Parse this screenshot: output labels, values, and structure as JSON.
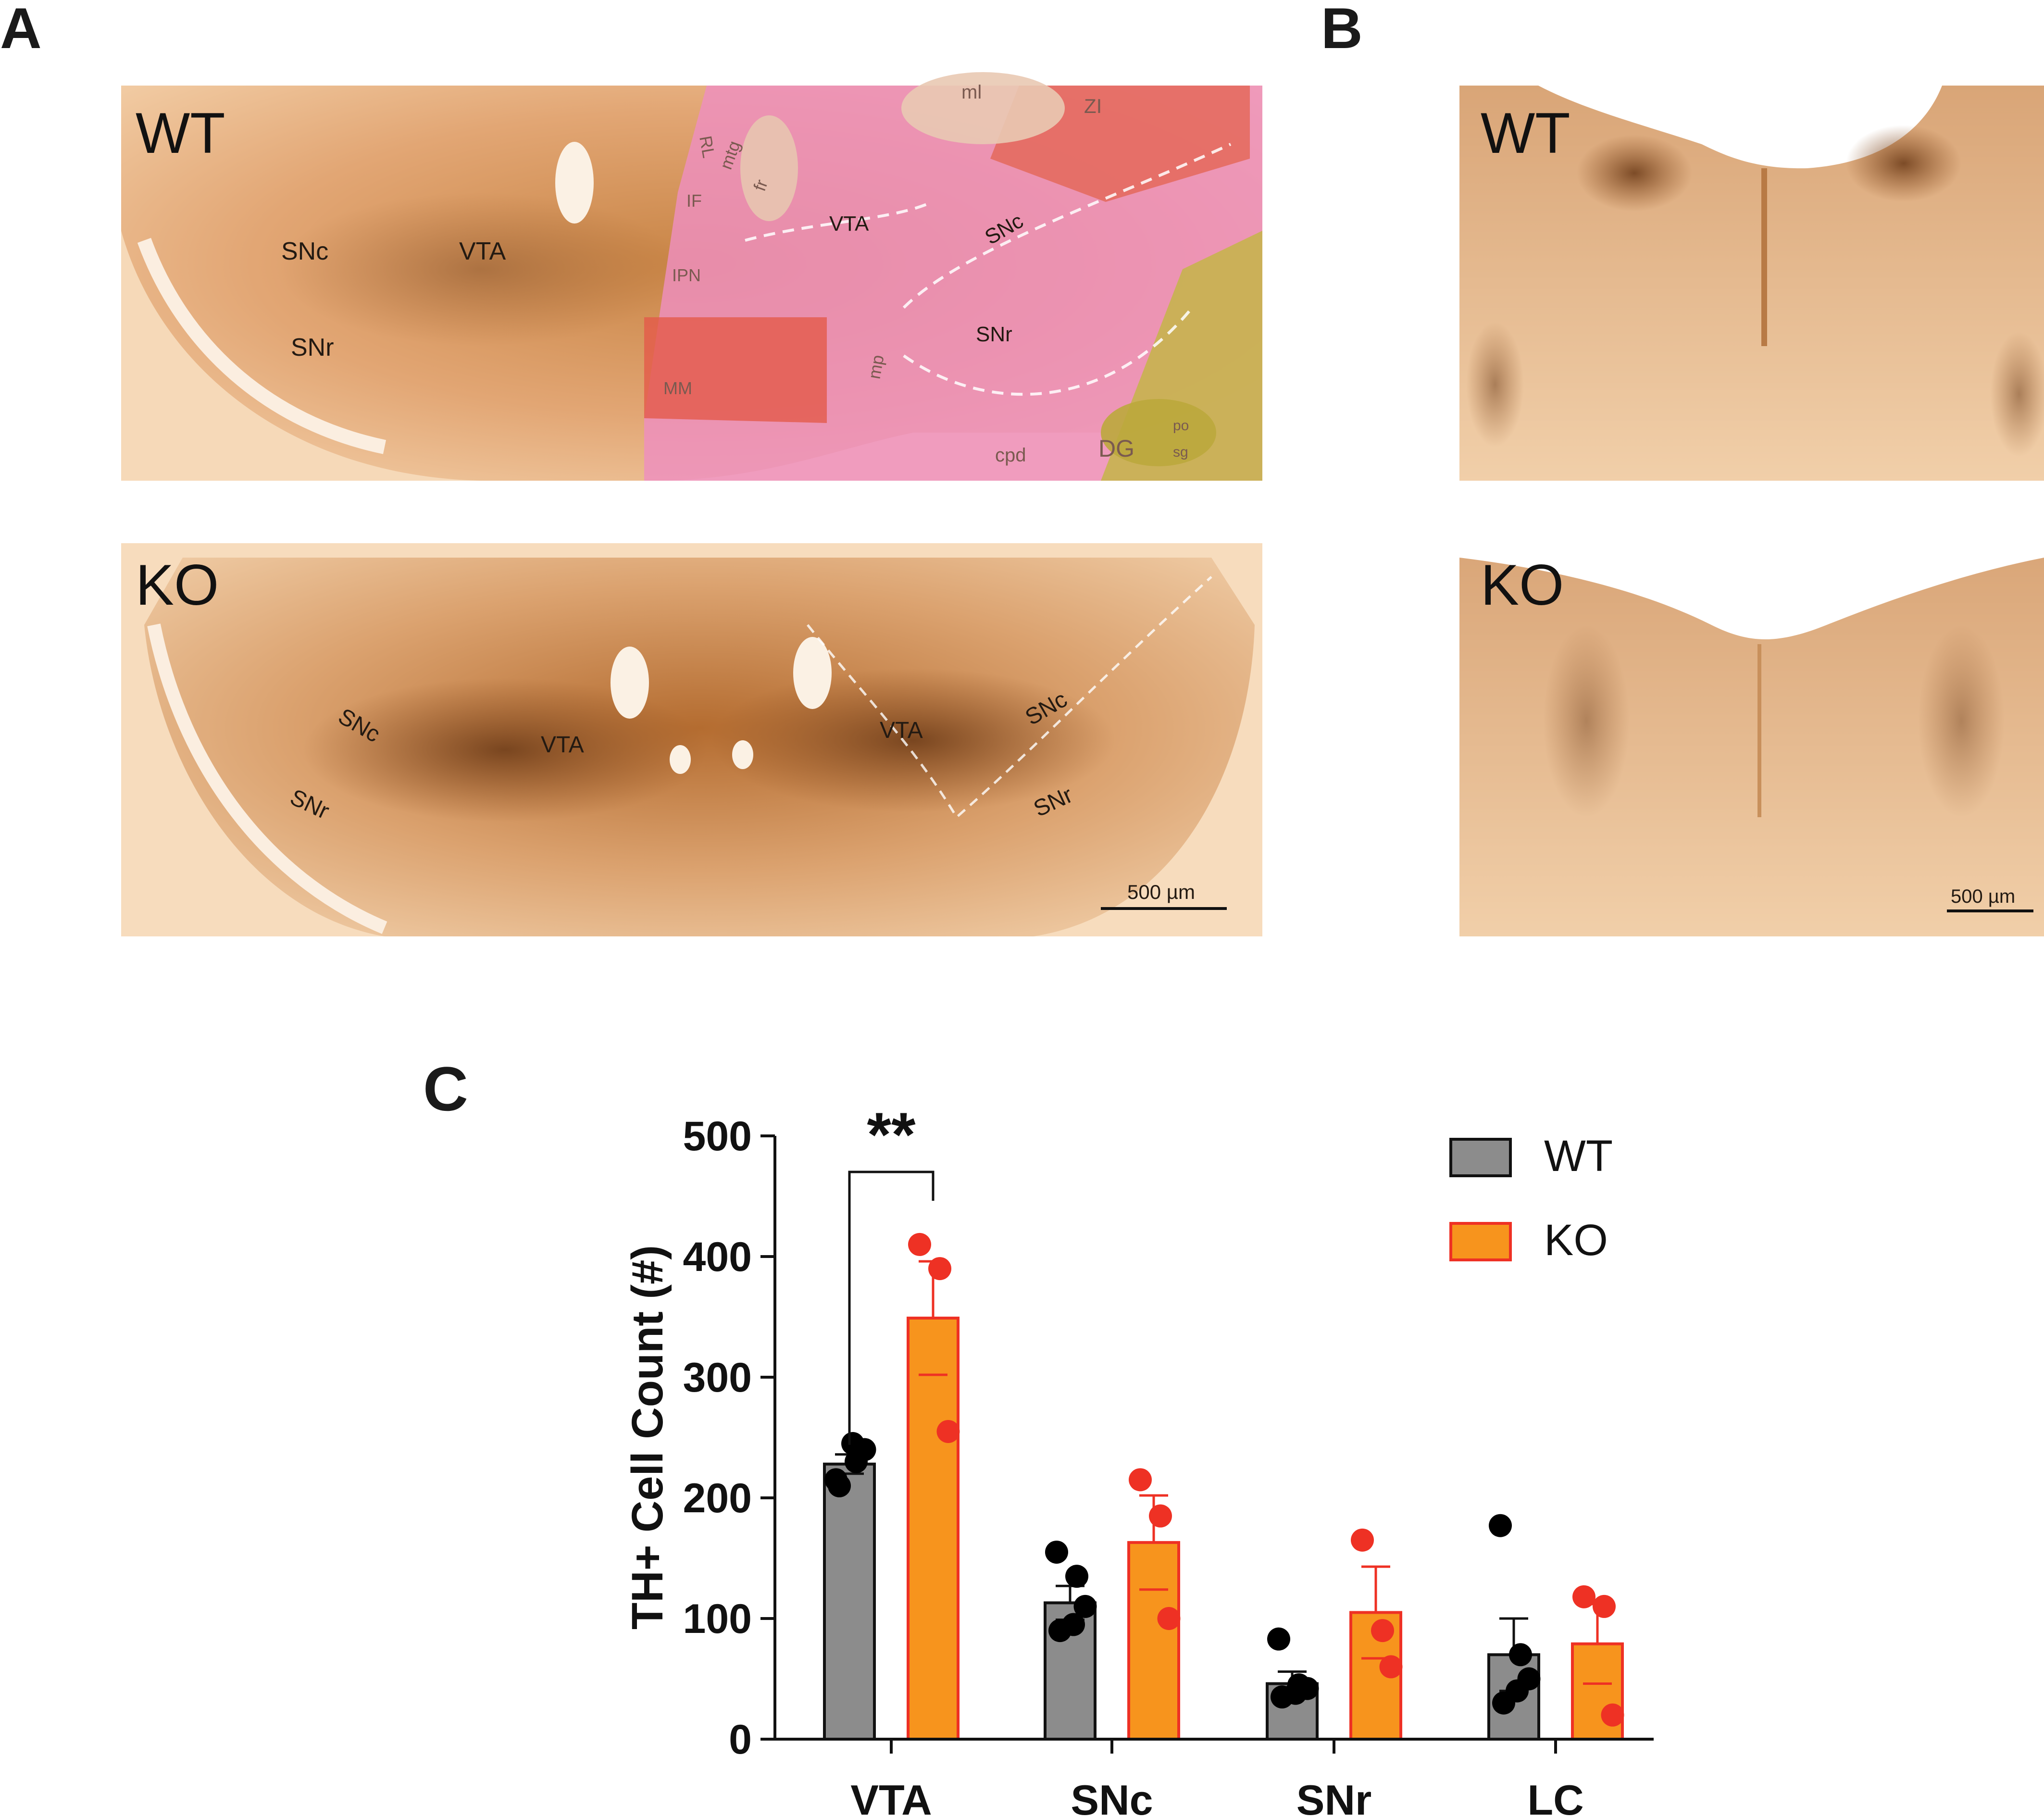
{
  "panels": {
    "a_label": "A",
    "b_label": "B",
    "c_label": "C"
  },
  "micrographs": {
    "a_top": {
      "group": "WT",
      "regions": [
        "SNc",
        "VTA",
        "SNr"
      ],
      "atlas_labels": [
        "ml",
        "ZI",
        "RL",
        "mtg",
        "fr",
        "IF",
        "IPN",
        "VTA",
        "SNc",
        "SNr",
        "MM",
        "mp",
        "cpd",
        "DG",
        "po",
        "sg"
      ]
    },
    "a_bottom": {
      "group": "KO",
      "regions": [
        "SNc",
        "VTA",
        "SNr",
        "VTA",
        "SNc",
        "SNr"
      ],
      "scale_bar": "500 µm"
    },
    "b_top": {
      "group": "WT"
    },
    "b_bottom": {
      "group": "KO",
      "scale_bar": "500 µm"
    }
  },
  "colors": {
    "wt_bar": "#8c8c8c",
    "ko_bar": "#f7941d",
    "wt_point": "#000000",
    "ko_point": "#ee3124",
    "ko_error": "#ee3124",
    "tissue_light": "#f1c9a0",
    "tissue_dark": "#b0652a",
    "atlas_pink": "#ee8fc0"
  },
  "chart_data": {
    "type": "bar",
    "ylabel": "TH+ Cell Count (#)",
    "ylim": [
      0,
      500
    ],
    "yticks": [
      "0",
      "100",
      "200",
      "300",
      "400",
      "500"
    ],
    "categories": [
      "VTA",
      "SNc",
      "SNr",
      "LC"
    ],
    "legend_position": "top-right",
    "series": [
      {
        "name": "WT",
        "values": [
          228,
          113,
          46,
          70
        ],
        "errors": [
          8,
          14,
          10,
          30
        ],
        "points": [
          [
            215,
            230,
            240,
            245,
            210
          ],
          [
            155,
            135,
            110,
            95,
            90
          ],
          [
            83,
            45,
            42,
            38,
            35
          ],
          [
            177,
            70,
            50,
            40,
            30
          ]
        ]
      },
      {
        "name": "KO",
        "values": [
          349,
          163,
          105,
          79
        ],
        "errors": [
          47,
          39,
          38,
          33
        ],
        "points": [
          [
            410,
            390,
            255
          ],
          [
            215,
            185,
            100
          ],
          [
            165,
            90,
            60
          ],
          [
            118,
            110,
            20
          ]
        ]
      }
    ],
    "significance": [
      {
        "category": "VTA",
        "label": "**"
      }
    ]
  }
}
